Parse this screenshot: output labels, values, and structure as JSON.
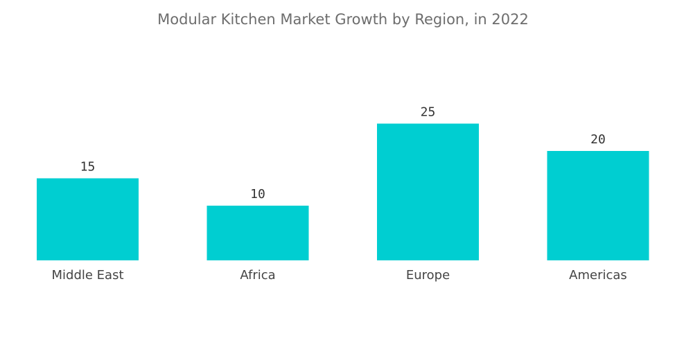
{
  "colors": {
    "bar": "#00ced1",
    "title": "#6d6d6d",
    "label": "#444444"
  },
  "chart_data": {
    "type": "bar",
    "title": "Modular Kitchen Market  Growth by Region, in 2022",
    "categories": [
      "Middle East",
      "Africa",
      "Europe",
      "Americas"
    ],
    "values": [
      15,
      10,
      25,
      20
    ],
    "data_labels": [
      "15",
      "10",
      "25",
      "20"
    ],
    "xlabel": "",
    "ylabel": "",
    "ylim": [
      0,
      25
    ],
    "grid": false,
    "legend": "none",
    "axes_visible": false
  }
}
